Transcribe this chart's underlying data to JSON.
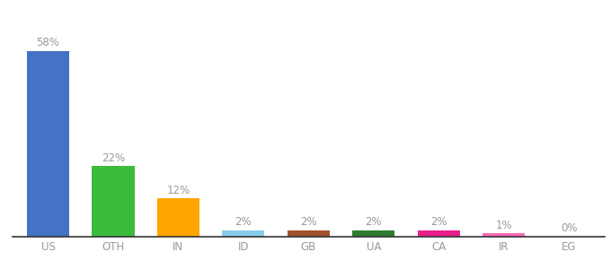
{
  "categories": [
    "US",
    "OTH",
    "IN",
    "ID",
    "GB",
    "UA",
    "CA",
    "IR",
    "EG"
  ],
  "values": [
    58,
    22,
    12,
    2,
    2,
    2,
    2,
    1,
    0
  ],
  "labels": [
    "58%",
    "22%",
    "12%",
    "2%",
    "2%",
    "2%",
    "2%",
    "1%",
    "0%"
  ],
  "colors": [
    "#4472C4",
    "#3DBB3D",
    "#FFA500",
    "#87CEEB",
    "#A0522D",
    "#2E7D32",
    "#E91E8C",
    "#FF69B4",
    "#CCCCCC"
  ],
  "background_color": "#FFFFFF",
  "ylim": [
    0,
    68
  ],
  "label_fontsize": 8.5,
  "tick_fontsize": 8.5,
  "label_color": "#999999",
  "tick_color": "#999999"
}
